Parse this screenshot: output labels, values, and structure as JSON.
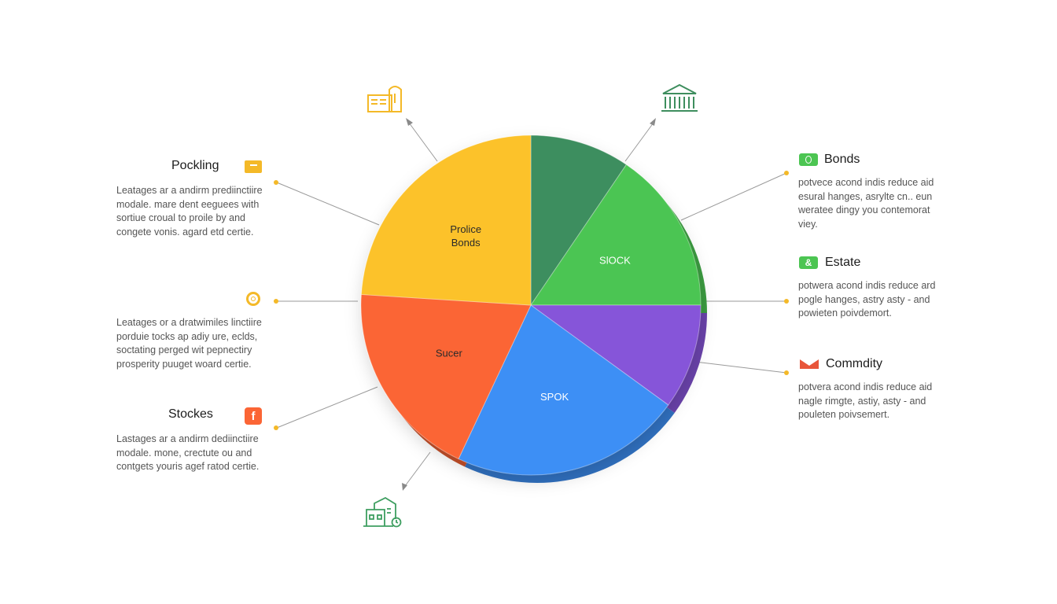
{
  "chart_data": {
    "type": "pie",
    "slices": [
      {
        "label": "",
        "value": 9.5,
        "color": "#3e8e5e"
      },
      {
        "label": "SlOCK",
        "value": 15.5,
        "color": "#4cc552"
      },
      {
        "label": "",
        "value": 10,
        "color": "#8654d9"
      },
      {
        "label": "SPOK",
        "value": 22,
        "color": "#3e8ff5"
      },
      {
        "label": "Sucer",
        "value": 19,
        "color": "#fb6535"
      },
      {
        "label": "Prolice\nBonds",
        "value": 24,
        "color": "#fcc22a"
      }
    ]
  },
  "annotations": {
    "left": [
      {
        "title": "Pockling",
        "body": "Leatages ar a andirm prediinctiire\nmodale. mare dent eeguees with\nsortiue croual to proile by and\ncongete vonis. agard etd certie.",
        "icon": "folder-icon",
        "color": "#f4b928"
      },
      {
        "title": "",
        "body": "Leatages or a dratwimiles linctiire\nporduie tocks ap adiy ure, eclds,\nsoctating perged wit pepnectiry\nprosperity puuget woard certie.",
        "icon": "coin-icon",
        "color": "#f4b928"
      },
      {
        "title": "Stockes",
        "body": "Lastages ar a andirm dediinctiire\nmodale. mone, crectute ou and\ncontgets youris agef ratod certie.",
        "icon": "facebook-icon",
        "color": "#fb6535"
      }
    ],
    "right": [
      {
        "title": "Bonds",
        "body": "potvece acond indis reduce aid\nesural hanges, asrylte cn.. eun\nweratee dingy you contemorat\nviey.",
        "icon": "bonds-icon",
        "color": "#4cc552"
      },
      {
        "title": "Estate",
        "body": "potwera acond indis reduce ard\npogle hanges, astry asty - and\npowieten poivdemort.",
        "icon": "estate-icon",
        "color": "#4cc552"
      },
      {
        "title": "Commdity",
        "body": "potvera acond indis reduce aid\nnagle rimgte, astiy, asty - and\npouleten poivsemert.",
        "icon": "mail-icon",
        "color": "#e8553a"
      }
    ]
  },
  "icons": {
    "top_left": "storefront-icon",
    "top_right": "bank-icon",
    "bottom": "house-clock-icon"
  }
}
